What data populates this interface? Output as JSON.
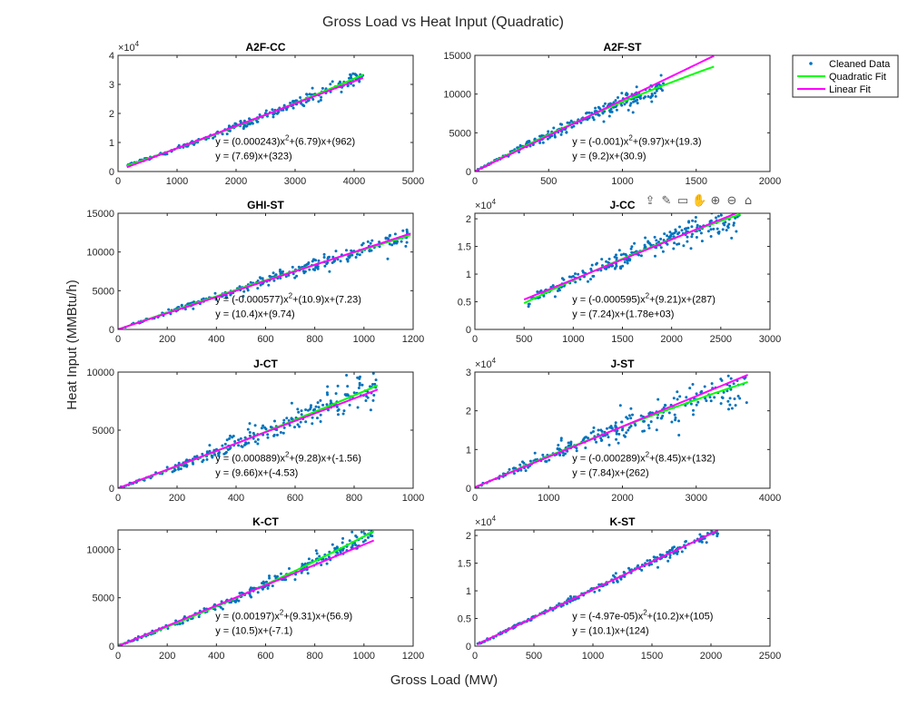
{
  "figure": {
    "title": "Gross Load vs Heat Input (Quadratic)",
    "xlabel": "Gross Load (MW)",
    "ylabel": "Heat Input (MMBtu/h)"
  },
  "legend": {
    "placement": "top-right",
    "entries": [
      {
        "label": "Cleaned Data",
        "color": "#0072BD",
        "kind": "marker"
      },
      {
        "label": "Quadratic Fit",
        "color": "#00FF00",
        "kind": "line"
      },
      {
        "label": "Linear Fit",
        "color": "#FF00FF",
        "kind": "line"
      }
    ]
  },
  "toolbar": [
    {
      "name": "export-icon",
      "glyph": "⇪"
    },
    {
      "name": "brush-icon",
      "glyph": "✎"
    },
    {
      "name": "datatip-icon",
      "glyph": "▭"
    },
    {
      "name": "pan-icon",
      "glyph": "✋"
    },
    {
      "name": "zoom-in-icon",
      "glyph": "⊕"
    },
    {
      "name": "zoom-out-icon",
      "glyph": "⊖"
    },
    {
      "name": "home-icon",
      "glyph": "⌂"
    }
  ],
  "colors": {
    "data": "#0072BD",
    "quadratic": "#00FF00",
    "linear": "#FF00FF"
  },
  "chart_data": [
    {
      "type": "scatter",
      "title": "A2F-CC",
      "xlim": [
        0,
        5000
      ],
      "ylim": [
        0,
        40000
      ],
      "xticks": [
        0,
        1000,
        2000,
        3000,
        4000,
        5000
      ],
      "yticks": [
        0,
        10000,
        20000,
        30000,
        40000
      ],
      "ytick_labels": [
        "0",
        "1",
        "2",
        "3",
        "4"
      ],
      "yexponent": "×10^4",
      "data_x": [
        150,
        4150
      ],
      "spread": 0.04,
      "quadratic": {
        "coeffs": [
          0.000243,
          6.79,
          962
        ],
        "x": [
          150,
          4150
        ]
      },
      "linear": {
        "coeffs": [
          7.69,
          323
        ],
        "x": [
          150,
          4150
        ]
      },
      "annotations": [
        "y = (0.000243)x^2+(6.79)x+(962)",
        "y = (7.69)x+(323)"
      ]
    },
    {
      "type": "scatter",
      "title": "A2F-ST",
      "xlim": [
        0,
        2000
      ],
      "ylim": [
        0,
        15000
      ],
      "xticks": [
        0,
        500,
        1000,
        1500,
        2000
      ],
      "yticks": [
        0,
        5000,
        10000,
        15000
      ],
      "ytick_labels": [
        "0",
        "5000",
        "10000",
        "15000"
      ],
      "yexponent": "",
      "data_x": [
        0,
        1280
      ],
      "spread": 0.06,
      "quadratic": {
        "coeffs": [
          -0.001,
          9.97,
          19.3
        ],
        "x": [
          0,
          1620
        ]
      },
      "linear": {
        "coeffs": [
          9.2,
          30.9
        ],
        "x": [
          0,
          1620
        ]
      },
      "annotations": [
        "y = (-0.001)x^2+(9.97)x+(19.3)",
        "y = (9.2)x+(30.9)"
      ]
    },
    {
      "type": "scatter",
      "title": "GHI-ST",
      "xlim": [
        0,
        1200
      ],
      "ylim": [
        0,
        15000
      ],
      "xticks": [
        0,
        200,
        400,
        600,
        800,
        1000,
        1200
      ],
      "yticks": [
        0,
        5000,
        10000,
        15000
      ],
      "ytick_labels": [
        "0",
        "5000",
        "10000",
        "15000"
      ],
      "yexponent": "",
      "data_x": [
        0,
        1190
      ],
      "spread": 0.06,
      "quadratic": {
        "coeffs": [
          -0.000577,
          10.9,
          7.23
        ],
        "x": [
          0,
          1190
        ]
      },
      "linear": {
        "coeffs": [
          10.4,
          9.74
        ],
        "x": [
          0,
          1190
        ]
      },
      "annotations": [
        "y = (-0.000577)x^2+(10.9)x+(7.23)",
        "y = (10.4)x+(9.74)"
      ]
    },
    {
      "type": "scatter",
      "title": "J-CC",
      "xlim": [
        0,
        3000
      ],
      "ylim": [
        0,
        21000
      ],
      "xticks": [
        0,
        500,
        1000,
        1500,
        2000,
        2500,
        3000
      ],
      "yticks": [
        0,
        5000,
        10000,
        15000,
        20000
      ],
      "ytick_labels": [
        "0",
        "0.5",
        "1",
        "1.5",
        "2"
      ],
      "yexponent": "×10^4",
      "data_x": [
        500,
        2700
      ],
      "spread": 0.07,
      "quadratic": {
        "coeffs": [
          -0.000595,
          9.21,
          287
        ],
        "x": [
          500,
          2700
        ]
      },
      "linear": {
        "coeffs": [
          7.24,
          1780
        ],
        "x": [
          500,
          2700
        ]
      },
      "annotations": [
        "y = (-0.000595)x^2+(9.21)x+(287)",
        "y = (7.24)x+(1.78e+03)"
      ]
    },
    {
      "type": "scatter",
      "title": "J-CT",
      "xlim": [
        0,
        1000
      ],
      "ylim": [
        0,
        10000
      ],
      "xticks": [
        0,
        200,
        400,
        600,
        800,
        1000
      ],
      "yticks": [
        0,
        5000,
        10000
      ],
      "ytick_labels": [
        "0",
        "5000",
        "10000"
      ],
      "yexponent": "",
      "data_x": [
        0,
        880
      ],
      "spread": 0.1,
      "quadratic": {
        "coeffs": [
          0.000889,
          9.28,
          -1.56
        ],
        "x": [
          0,
          880
        ]
      },
      "linear": {
        "coeffs": [
          9.66,
          -4.53
        ],
        "x": [
          0,
          880
        ]
      },
      "annotations": [
        "y = (0.000889)x^2+(9.28)x+(-1.56)",
        "y = (9.66)x+(-4.53)"
      ]
    },
    {
      "type": "scatter",
      "title": "J-ST",
      "xlim": [
        0,
        4000
      ],
      "ylim": [
        0,
        30000
      ],
      "xticks": [
        0,
        1000,
        2000,
        3000,
        4000
      ],
      "yticks": [
        0,
        10000,
        20000,
        30000
      ],
      "ytick_labels": [
        "0",
        "1",
        "2",
        "3"
      ],
      "yexponent": "×10^4",
      "data_x": [
        0,
        3700
      ],
      "spread": 0.1,
      "quadratic": {
        "coeffs": [
          -0.000289,
          8.45,
          132
        ],
        "x": [
          0,
          3700
        ]
      },
      "linear": {
        "coeffs": [
          7.84,
          262
        ],
        "x": [
          0,
          3700
        ]
      },
      "annotations": [
        "y = (-0.000289)x^2+(8.45)x+(132)",
        "y = (7.84)x+(262)"
      ]
    },
    {
      "type": "scatter",
      "title": "K-CT",
      "xlim": [
        0,
        1200
      ],
      "ylim": [
        0,
        12000
      ],
      "xticks": [
        0,
        200,
        400,
        600,
        800,
        1000,
        1200
      ],
      "yticks": [
        0,
        5000,
        10000
      ],
      "ytick_labels": [
        "0",
        "5000",
        "10000"
      ],
      "yexponent": "",
      "data_x": [
        0,
        1040
      ],
      "spread": 0.05,
      "quadratic": {
        "coeffs": [
          0.00197,
          9.31,
          56.9
        ],
        "x": [
          0,
          1040
        ]
      },
      "linear": {
        "coeffs": [
          10.5,
          -7.1
        ],
        "x": [
          0,
          1040
        ]
      },
      "annotations": [
        "y = (0.00197)x^2+(9.31)x+(56.9)",
        "y = (10.5)x+(-7.1)"
      ]
    },
    {
      "type": "scatter",
      "title": "K-ST",
      "xlim": [
        0,
        2500
      ],
      "ylim": [
        0,
        21000
      ],
      "xticks": [
        0,
        500,
        1000,
        1500,
        2000,
        2500
      ],
      "yticks": [
        0,
        5000,
        10000,
        15000,
        20000
      ],
      "ytick_labels": [
        "0",
        "0.5",
        "1",
        "1.5",
        "2"
      ],
      "yexponent": "×10^4",
      "data_x": [
        20,
        2060
      ],
      "spread": 0.025,
      "quadratic": {
        "coeffs": [
          -4.97e-05,
          10.2,
          105
        ],
        "x": [
          20,
          2060
        ]
      },
      "linear": {
        "coeffs": [
          10.1,
          124
        ],
        "x": [
          20,
          2060
        ]
      },
      "annotations": [
        "y = (-4.97e-05)x^2+(10.2)x+(105)",
        "y = (10.1)x+(124)"
      ]
    }
  ]
}
